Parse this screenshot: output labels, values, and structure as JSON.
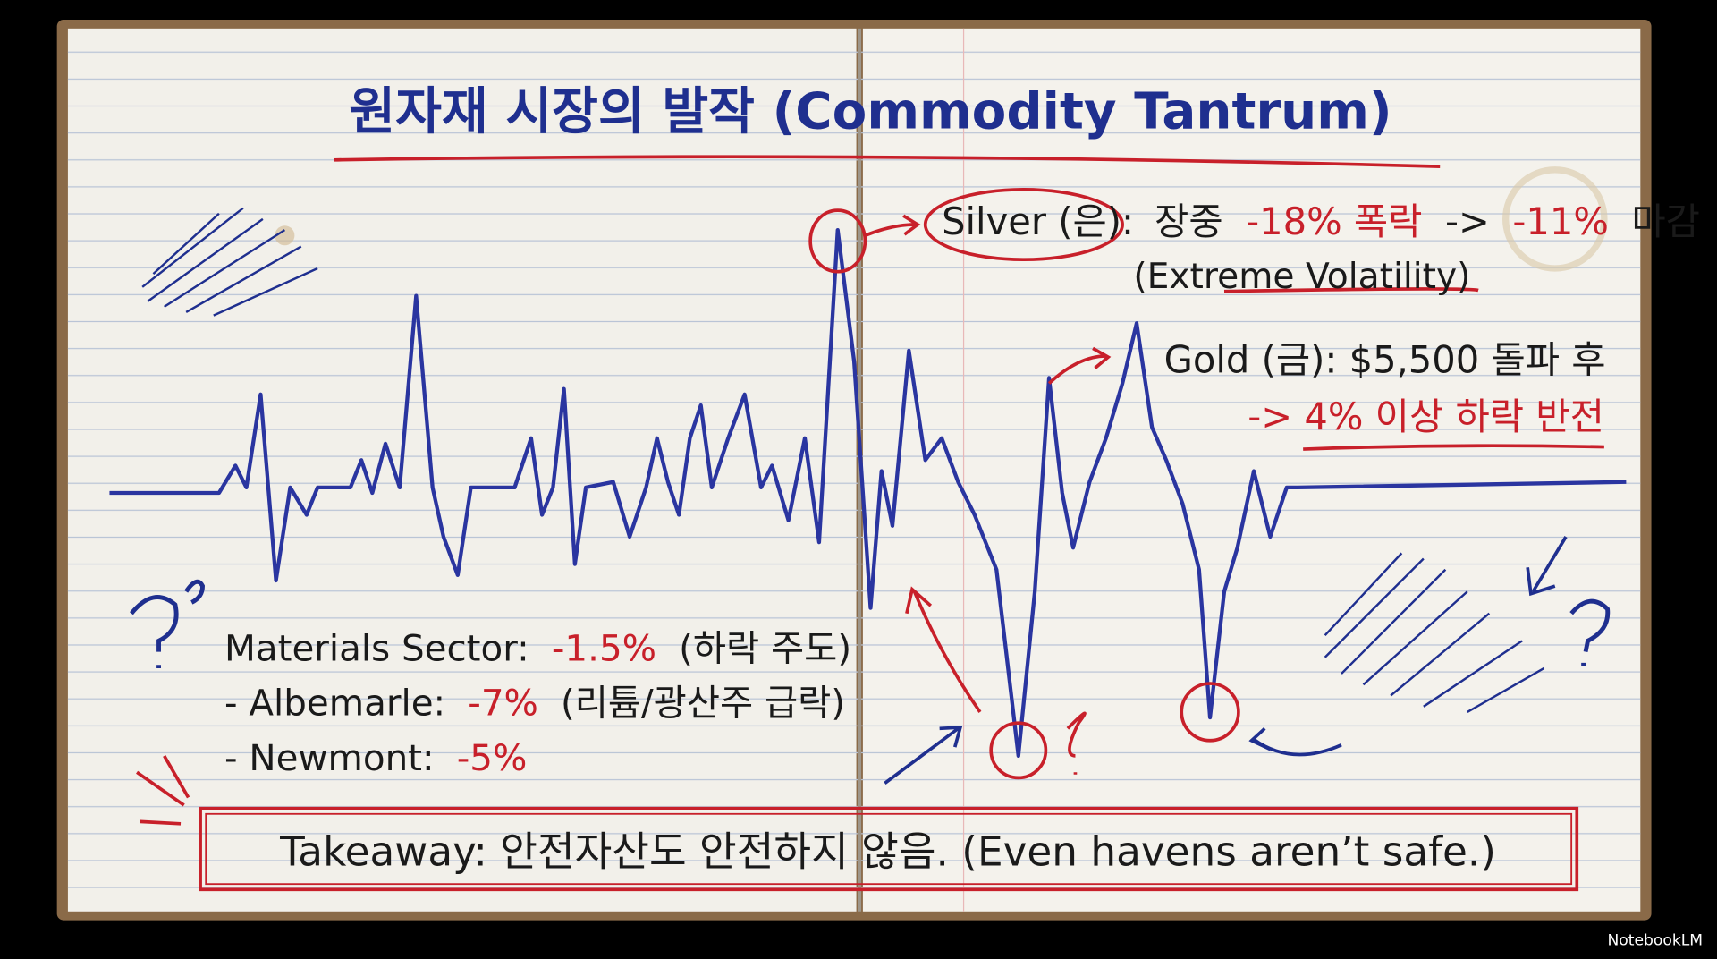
{
  "title": "원자재 시장의 발작 (Commodity Tantrum)",
  "annotations": {
    "silver": {
      "label": "Silver (은):",
      "text1": "장중",
      "drop": "-18% 폭락",
      "arrow": "->",
      "close": "-11%",
      "text2": "마감",
      "note": "(Extreme Volatility)"
    },
    "gold": {
      "label": "Gold (금): $5,500 돌파 후",
      "reversal": "-> 4% 이상 하락 반전"
    }
  },
  "sector": {
    "label": "Materials Sector:",
    "value": "-1.5%",
    "note": "(하락 주도)",
    "items": [
      {
        "name": "- Albemarle:",
        "value": "-7%",
        "note": "(리튬/광산주 급락)"
      },
      {
        "name": "- Newmont:",
        "value": "-5%"
      }
    ]
  },
  "takeaway": "Takeaway: 안전자산도 안전하지 않음. (Even havens aren’t safe.)",
  "watermark": "NotebookLM"
}
